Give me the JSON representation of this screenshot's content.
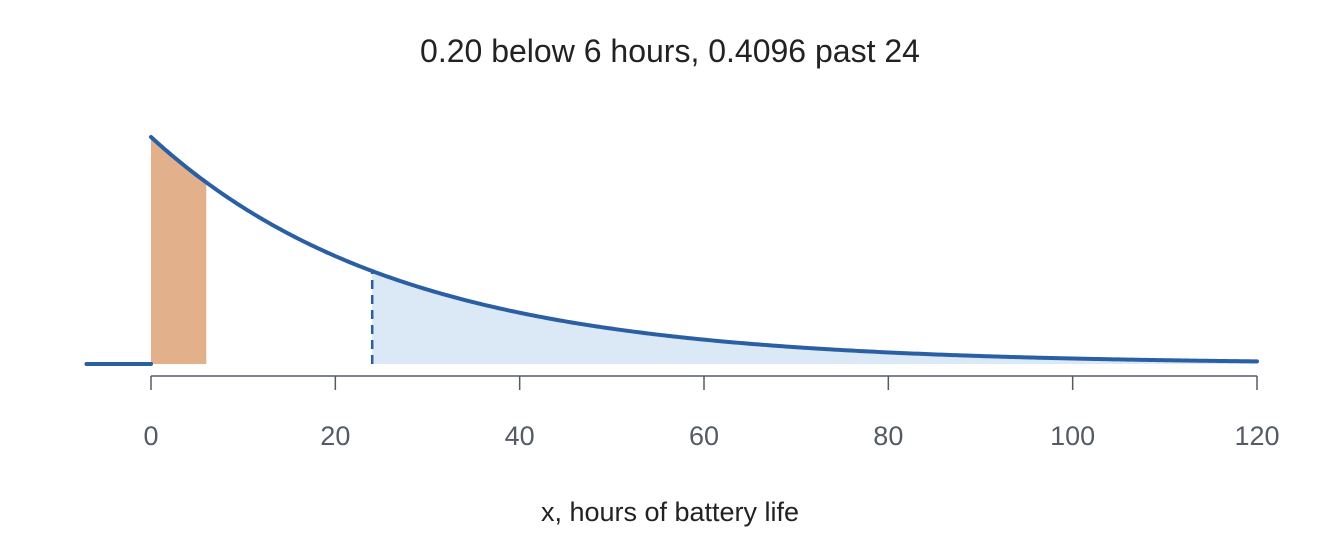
{
  "chart_data": {
    "type": "area",
    "title": "0.20 below 6 hours, 0.4096 past 24",
    "xlabel": "x, hours of battery life",
    "ylabel": "",
    "xlim": [
      -7,
      120
    ],
    "xticks": [
      0,
      20,
      40,
      60,
      80,
      100,
      120
    ],
    "xtick_labels": [
      "0",
      "20",
      "40",
      "60",
      "80",
      "100",
      "120"
    ],
    "distribution": {
      "name": "exponential",
      "rate": 0.0372,
      "mean": 26.9
    },
    "shaded_regions": [
      {
        "name": "lower tail",
        "from": 0,
        "to": 6,
        "probability": 0.2
      },
      {
        "name": "upper tail",
        "from": 24,
        "to": 120,
        "probability": 0.4096
      }
    ],
    "marker_line": {
      "x": 24,
      "style": "dashed"
    },
    "grid": false,
    "y_axis_shown": false,
    "colors": {
      "curve": "#2b5fa4",
      "lower_fill": "#e3b08c",
      "upper_fill": "#dbe8f6",
      "axis": "#555b66",
      "title": "#222222"
    }
  }
}
